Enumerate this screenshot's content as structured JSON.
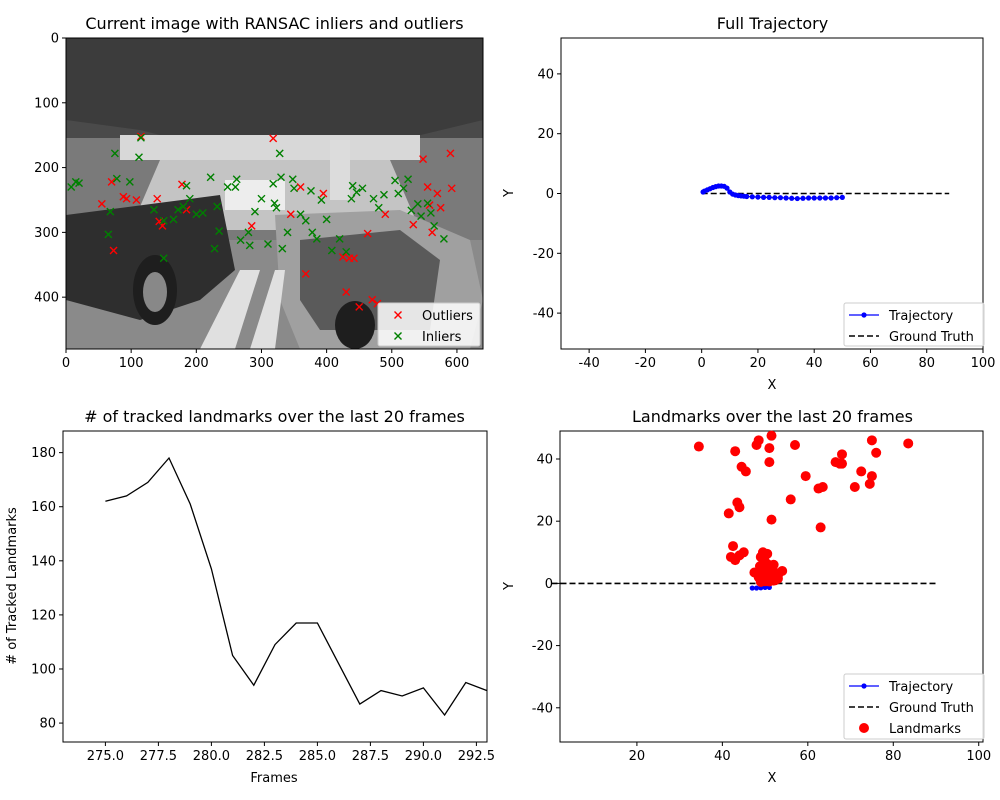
{
  "colors": {
    "outlier": "#ff0000",
    "inlier": "#008000",
    "trajectory": "#0000ff",
    "ground_truth": "#000000",
    "landmark": "#ff0000",
    "line": "#000000"
  },
  "chart_data": [
    {
      "type": "image-scatter",
      "title": "Current image with RANSAC inliers and outliers",
      "xlabel": "",
      "ylabel": "",
      "xlim": [
        0,
        640
      ],
      "ylim": [
        480,
        0
      ],
      "xticks": [
        0,
        100,
        200,
        300,
        400,
        500,
        600
      ],
      "yticks": [
        0,
        100,
        200,
        300,
        400
      ],
      "legend": {
        "position": "lower-right",
        "entries": [
          "Outliers",
          "Inliers"
        ]
      },
      "outliers": [
        [
          55,
          256
        ],
        [
          70,
          222
        ],
        [
          73,
          328
        ],
        [
          88,
          245
        ],
        [
          93,
          248
        ],
        [
          108,
          250
        ],
        [
          115,
          152
        ],
        [
          140,
          248
        ],
        [
          143,
          283
        ],
        [
          148,
          290
        ],
        [
          178,
          226
        ],
        [
          185,
          265
        ],
        [
          285,
          290
        ],
        [
          318,
          155
        ],
        [
          345,
          272
        ],
        [
          360,
          230
        ],
        [
          368,
          364
        ],
        [
          395,
          240
        ],
        [
          425,
          338
        ],
        [
          430,
          392
        ],
        [
          435,
          340
        ],
        [
          442,
          340
        ],
        [
          450,
          415
        ],
        [
          463,
          302
        ],
        [
          470,
          404
        ],
        [
          478,
          410
        ],
        [
          490,
          272
        ],
        [
          533,
          288
        ],
        [
          548,
          187
        ],
        [
          555,
          230
        ],
        [
          558,
          258
        ],
        [
          562,
          300
        ],
        [
          570,
          240
        ],
        [
          575,
          262
        ],
        [
          590,
          178
        ],
        [
          592,
          232
        ]
      ],
      "inliers": [
        [
          8,
          230
        ],
        [
          15,
          222
        ],
        [
          20,
          224
        ],
        [
          65,
          303
        ],
        [
          68,
          268
        ],
        [
          75,
          178
        ],
        [
          78,
          217
        ],
        [
          98,
          222
        ],
        [
          112,
          184
        ],
        [
          115,
          154
        ],
        [
          135,
          265
        ],
        [
          150,
          282
        ],
        [
          150,
          340
        ],
        [
          165,
          280
        ],
        [
          172,
          265
        ],
        [
          180,
          260
        ],
        [
          185,
          228
        ],
        [
          190,
          248
        ],
        [
          200,
          272
        ],
        [
          210,
          270
        ],
        [
          222,
          215
        ],
        [
          228,
          325
        ],
        [
          232,
          260
        ],
        [
          235,
          298
        ],
        [
          248,
          230
        ],
        [
          260,
          230
        ],
        [
          262,
          218
        ],
        [
          268,
          312
        ],
        [
          280,
          300
        ],
        [
          282,
          320
        ],
        [
          290,
          268
        ],
        [
          300,
          248
        ],
        [
          310,
          318
        ],
        [
          318,
          225
        ],
        [
          320,
          255
        ],
        [
          323,
          262
        ],
        [
          328,
          178
        ],
        [
          330,
          215
        ],
        [
          332,
          325
        ],
        [
          340,
          300
        ],
        [
          348,
          218
        ],
        [
          350,
          232
        ],
        [
          360,
          272
        ],
        [
          368,
          282
        ],
        [
          376,
          236
        ],
        [
          378,
          300
        ],
        [
          385,
          310
        ],
        [
          392,
          250
        ],
        [
          400,
          280
        ],
        [
          408,
          328
        ],
        [
          420,
          310
        ],
        [
          430,
          330
        ],
        [
          438,
          248
        ],
        [
          440,
          228
        ],
        [
          446,
          238
        ],
        [
          455,
          232
        ],
        [
          472,
          248
        ],
        [
          480,
          262
        ],
        [
          488,
          242
        ],
        [
          505,
          220
        ],
        [
          510,
          240
        ],
        [
          518,
          232
        ],
        [
          525,
          218
        ],
        [
          530,
          266
        ],
        [
          540,
          256
        ],
        [
          545,
          275
        ],
        [
          555,
          255
        ],
        [
          560,
          270
        ],
        [
          565,
          290
        ],
        [
          580,
          310
        ]
      ]
    },
    {
      "type": "line",
      "title": "Full Trajectory",
      "xlabel": "X",
      "ylabel": "Y",
      "xlim": [
        -50,
        100
      ],
      "ylim": [
        -52,
        52
      ],
      "xticks": [
        -40,
        -20,
        0,
        20,
        40,
        60,
        80,
        100
      ],
      "yticks": [
        -40,
        -20,
        0,
        20,
        40
      ],
      "legend": {
        "position": "lower-right",
        "entries": [
          "Trajectory",
          "Ground Truth"
        ]
      },
      "trajectory": {
        "x": [
          0.5,
          1,
          2,
          3,
          4,
          5,
          6,
          7,
          8,
          9,
          10,
          11,
          12,
          13,
          14,
          15,
          16,
          18,
          20,
          22,
          24,
          26,
          28,
          30,
          32,
          34,
          36,
          38,
          40,
          42,
          44,
          46,
          48,
          50
        ],
        "y": [
          0.5,
          0.8,
          1.2,
          1.6,
          2.0,
          2.3,
          2.5,
          2.5,
          2.4,
          1.8,
          0.5,
          -0.2,
          -0.5,
          -0.7,
          -0.8,
          -0.9,
          -1.0,
          -1.1,
          -1.2,
          -1.3,
          -1.3,
          -1.4,
          -1.4,
          -1.5,
          -1.6,
          -1.7,
          -1.6,
          -1.5,
          -1.5,
          -1.5,
          -1.5,
          -1.5,
          -1.4,
          -1.3
        ]
      },
      "ground_truth": {
        "x": [
          0,
          88
        ],
        "y": [
          0,
          0
        ]
      }
    },
    {
      "type": "line",
      "title": "# of tracked landmarks over the last 20 frames",
      "xlabel": "Frames",
      "ylabel": "# of Tracked Landmarks",
      "xlim": [
        273,
        293
      ],
      "ylim": [
        73,
        188
      ],
      "xticks": [
        275.0,
        277.5,
        280.0,
        282.5,
        285.0,
        287.5,
        290.0,
        292.5
      ],
      "xtick_labels": [
        "275.0",
        "277.5",
        "280.0",
        "282.5",
        "285.0",
        "287.5",
        "290.0",
        "292.5"
      ],
      "yticks": [
        80,
        100,
        120,
        140,
        160,
        180
      ],
      "x": [
        275,
        276,
        277,
        278,
        279,
        280,
        281,
        282,
        283,
        284,
        285,
        286,
        287,
        288,
        289,
        290,
        291,
        292,
        293
      ],
      "y": [
        162,
        164,
        169,
        178,
        161,
        137,
        105,
        94,
        109,
        117,
        117,
        102,
        87,
        92,
        90,
        93,
        83,
        95,
        92
      ]
    },
    {
      "type": "scatter",
      "title": "Landmarks over the last 20 frames",
      "xlabel": "X",
      "ylabel": "Y",
      "xlim": [
        2,
        101
      ],
      "ylim": [
        -51,
        49
      ],
      "xticks": [
        20,
        40,
        60,
        80,
        100
      ],
      "yticks": [
        -40,
        -20,
        0,
        20,
        40
      ],
      "legend": {
        "position": "lower-right",
        "entries": [
          "Trajectory",
          "Ground Truth",
          "Landmarks"
        ]
      },
      "trajectory": {
        "x": [
          47,
          48,
          49,
          50,
          51
        ],
        "y": [
          -1.5,
          -1.5,
          -1.4,
          -1.3,
          -1.3
        ]
      },
      "ground_truth": {
        "x": [
          0,
          90
        ],
        "y": [
          0,
          0
        ]
      },
      "landmarks": {
        "x": [
          34.5,
          41.5,
          42,
          42.5,
          43,
          43,
          43.5,
          44,
          44,
          44.5,
          45,
          45.5,
          48,
          48.5,
          49,
          49,
          49.5,
          50,
          50.5,
          51,
          51,
          51.5,
          51.5,
          52,
          52,
          53,
          54,
          48.2,
          48.8,
          49.3,
          49.8,
          50.3,
          50.8,
          51.2,
          51.8,
          52.3,
          52.8,
          49,
          50,
          51,
          52,
          48.5,
          49.5,
          50.5,
          56,
          57,
          59.5,
          62.5,
          63,
          63.5,
          66.5,
          67.5,
          68,
          68,
          71,
          72.5,
          74.5,
          75,
          75,
          76,
          83.5,
          49,
          51,
          50,
          53,
          47.5
        ],
        "y": [
          44,
          22.5,
          8.5,
          12,
          7.5,
          42.5,
          26,
          24.5,
          9,
          37.5,
          10,
          36,
          44.5,
          46,
          5,
          8.5,
          10,
          7,
          9.5,
          39,
          43.5,
          20.5,
          47.5,
          3,
          6,
          2.5,
          4,
          3,
          5.5,
          1.5,
          7,
          3.5,
          6,
          2,
          4.5,
          1,
          3,
          0.8,
          1,
          1.2,
          0.9,
          2,
          4,
          5.5,
          27,
          44.5,
          34.5,
          30.5,
          18,
          31,
          39,
          38.5,
          41.5,
          38.5,
          31,
          36,
          32,
          34.5,
          46,
          42,
          45,
          0.5,
          0.6,
          0.7,
          1.5,
          3.5
        ]
      }
    }
  ]
}
